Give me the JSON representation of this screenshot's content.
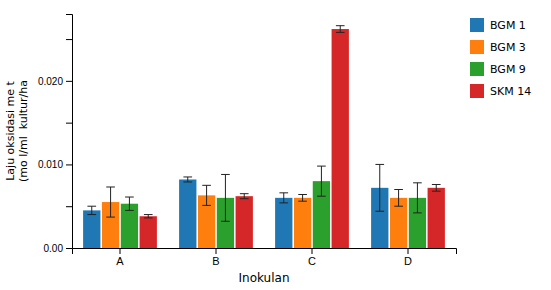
{
  "chart_data": {
    "type": "bar",
    "categories": [
      "A",
      "B",
      "C",
      "D"
    ],
    "series": [
      {
        "name": "BGM 1",
        "values": [
          0.0045,
          0.0082,
          0.006,
          0.0072
        ],
        "errors": [
          0.0005,
          0.0003,
          0.0006,
          0.0028
        ]
      },
      {
        "name": "BGM 3",
        "values": [
          0.0055,
          0.0063,
          0.006,
          0.006
        ],
        "errors": [
          0.0018,
          0.0012,
          0.0004,
          0.001
        ]
      },
      {
        "name": "BGM 9",
        "values": [
          0.0053,
          0.006,
          0.008,
          0.006
        ],
        "errors": [
          0.0008,
          0.0028,
          0.0018,
          0.0018
        ]
      },
      {
        "name": "SKM 14",
        "values": [
          0.0038,
          0.0062,
          0.0262,
          0.0072
        ],
        "errors": [
          0.0002,
          0.0003,
          0.0004,
          0.0004
        ]
      }
    ],
    "xlabel": "Inokulan",
    "ylabel": "Laju oksidasi me t\n(mo l/ml  kultur/ha",
    "ylim": [
      0.0,
      0.028
    ],
    "yticks": [
      {
        "value": 0.0,
        "label": "0.00"
      },
      {
        "value": 0.005,
        "label": null
      },
      {
        "value": 0.01,
        "label": "0.010"
      },
      {
        "value": 0.015,
        "label": null
      },
      {
        "value": 0.02,
        "label": "0.020"
      },
      {
        "value": 0.025,
        "label": null
      }
    ],
    "grid": false,
    "legend": "right"
  }
}
